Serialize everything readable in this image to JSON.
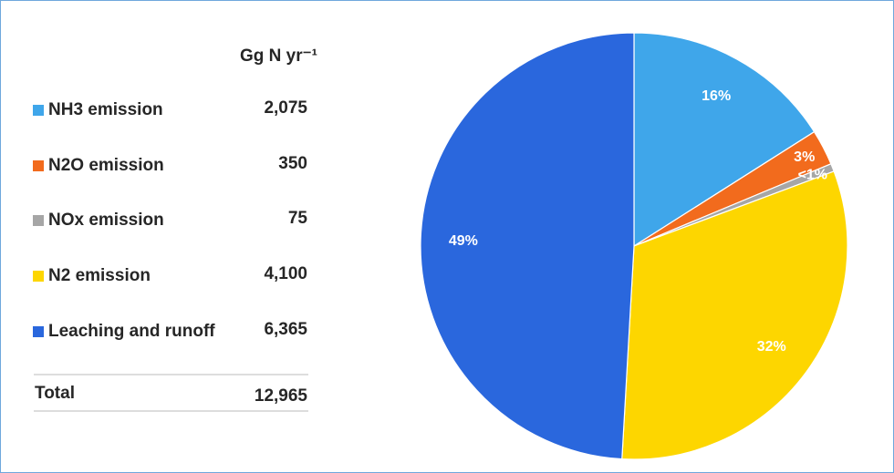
{
  "chart_data": {
    "type": "pie",
    "categories": [
      "NH3 emission",
      "N2O emission",
      "NOx emission",
      "N2 emission",
      "Leaching and runoff"
    ],
    "values": [
      16.0,
      2.7,
      0.6,
      31.6,
      49.1
    ],
    "value_labels": [
      "16%",
      "3%",
      "<1%",
      "32%",
      "49%"
    ],
    "colors": [
      "#3fa6ea",
      "#f26b1d",
      "#a6a6a6",
      "#fdd600",
      "#2a67dd"
    ]
  },
  "table": {
    "unit_header": "Gg N yr⁻¹",
    "amounts": [
      "2,075",
      "350",
      "75",
      "4,100",
      "6,365"
    ],
    "total_label": "Total",
    "total": "12,965"
  }
}
